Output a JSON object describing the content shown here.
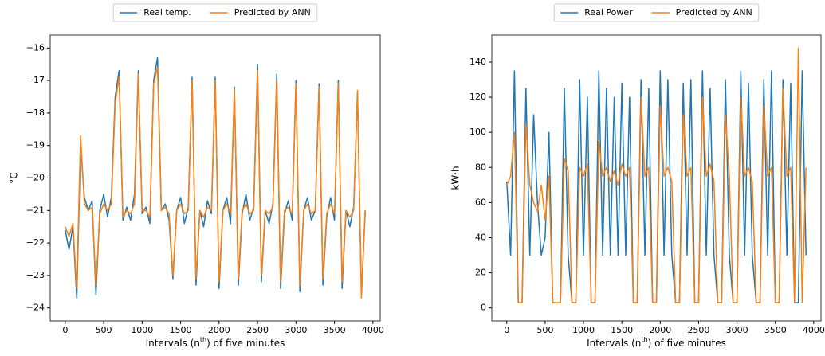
{
  "chart_data": [
    {
      "type": "line",
      "ylabel": "°C",
      "xlabel": [
        "Intervals (n",
        "th",
        ") of five minutes"
      ],
      "legend": "upper center",
      "xlim": [
        -195,
        4095
      ],
      "xticks": [
        0,
        500,
        1000,
        1500,
        2000,
        2500,
        3000,
        3500,
        4000
      ],
      "ylim": [
        -24.4,
        -15.6
      ],
      "yticks": [
        {
          "value": -24,
          "label": "−24"
        },
        {
          "value": -23,
          "label": "−23"
        },
        {
          "value": -22,
          "label": "−22"
        },
        {
          "value": -21,
          "label": "−21"
        },
        {
          "value": -20,
          "label": "−20"
        },
        {
          "value": -19,
          "label": "−19"
        },
        {
          "value": -18,
          "label": "−18"
        },
        {
          "value": -17,
          "label": "−17"
        },
        {
          "value": -16,
          "label": "−16"
        }
      ],
      "x": [
        0,
        50,
        100,
        150,
        200,
        250,
        300,
        350,
        400,
        450,
        500,
        550,
        600,
        650,
        700,
        750,
        800,
        850,
        900,
        950,
        1000,
        1050,
        1100,
        1150,
        1200,
        1250,
        1300,
        1350,
        1400,
        1450,
        1500,
        1550,
        1600,
        1650,
        1700,
        1750,
        1800,
        1850,
        1900,
        1950,
        2000,
        2050,
        2100,
        2150,
        2200,
        2250,
        2300,
        2350,
        2400,
        2450,
        2500,
        2550,
        2600,
        2650,
        2700,
        2750,
        2800,
        2850,
        2900,
        2950,
        3000,
        3050,
        3100,
        3150,
        3200,
        3250,
        3300,
        3350,
        3400,
        3450,
        3500,
        3550,
        3600,
        3650,
        3700,
        3750,
        3800,
        3850,
        3900
      ],
      "series": [
        {
          "name": "Real temp.",
          "color": "#1f77b4",
          "values": [
            -21.6,
            -22.2,
            -21.5,
            -23.7,
            -19.0,
            -20.6,
            -21.0,
            -20.7,
            -23.6,
            -21.0,
            -20.5,
            -21.2,
            -20.6,
            -17.5,
            -16.7,
            -21.3,
            -20.9,
            -21.3,
            -20.5,
            -16.7,
            -21.1,
            -20.9,
            -21.4,
            -17.0,
            -16.3,
            -21.0,
            -20.8,
            -21.3,
            -23.1,
            -21.0,
            -20.6,
            -21.4,
            -20.9,
            -16.9,
            -23.3,
            -21.0,
            -21.5,
            -20.7,
            -21.1,
            -16.9,
            -23.4,
            -21.0,
            -20.6,
            -21.4,
            -17.2,
            -23.3,
            -21.1,
            -20.5,
            -21.3,
            -20.9,
            -16.5,
            -23.2,
            -21.0,
            -21.4,
            -20.8,
            -16.8,
            -23.4,
            -21.1,
            -20.7,
            -21.3,
            -17.0,
            -23.5,
            -21.0,
            -20.6,
            -21.3,
            -21.0,
            -17.1,
            -23.3,
            -21.2,
            -20.6,
            -21.3,
            -17.0,
            -23.4,
            -21.0,
            -21.5,
            -20.9,
            -17.4,
            -23.6,
            -21.0
          ]
        },
        {
          "name": "Predicted by ANN",
          "color": "#ff7f0e",
          "values": [
            -21.5,
            -21.8,
            -21.4,
            -23.4,
            -18.7,
            -20.8,
            -21.0,
            -20.9,
            -23.3,
            -21.1,
            -20.8,
            -21.0,
            -20.8,
            -17.7,
            -16.9,
            -21.2,
            -21.0,
            -21.1,
            -20.8,
            -16.8,
            -21.0,
            -21.0,
            -21.2,
            -17.1,
            -16.6,
            -21.0,
            -20.9,
            -21.1,
            -23.0,
            -21.0,
            -20.8,
            -21.1,
            -21.0,
            -17.0,
            -23.1,
            -21.0,
            -21.2,
            -20.9,
            -21.0,
            -17.0,
            -23.2,
            -21.0,
            -20.8,
            -21.1,
            -17.3,
            -23.1,
            -21.0,
            -20.8,
            -21.1,
            -21.0,
            -16.7,
            -23.0,
            -21.0,
            -21.1,
            -20.9,
            -17.0,
            -23.2,
            -21.0,
            -20.9,
            -21.1,
            -17.1,
            -23.3,
            -21.0,
            -20.8,
            -21.1,
            -21.0,
            -17.2,
            -23.1,
            -21.1,
            -20.8,
            -21.1,
            -17.1,
            -23.2,
            -21.0,
            -21.2,
            -21.0,
            -17.3,
            -23.7,
            -21.0
          ]
        }
      ]
    },
    {
      "type": "line",
      "ylabel": "kW·h",
      "xlabel": [
        "Intervals (n",
        "th",
        ") of five minutes"
      ],
      "legend": "upper center",
      "xlim": [
        -195,
        4095
      ],
      "xticks": [
        0,
        500,
        1000,
        1500,
        2000,
        2500,
        3000,
        3500,
        4000
      ],
      "ylim": [
        -7.4,
        155.4
      ],
      "yticks": [
        0,
        20,
        40,
        60,
        80,
        100,
        120,
        140
      ],
      "x": [
        0,
        50,
        100,
        150,
        200,
        250,
        300,
        350,
        400,
        450,
        500,
        550,
        600,
        650,
        700,
        750,
        800,
        850,
        900,
        950,
        1000,
        1050,
        1100,
        1150,
        1200,
        1250,
        1300,
        1350,
        1400,
        1450,
        1500,
        1550,
        1600,
        1650,
        1700,
        1750,
        1800,
        1850,
        1900,
        1950,
        2000,
        2050,
        2100,
        2150,
        2200,
        2250,
        2300,
        2350,
        2400,
        2450,
        2500,
        2550,
        2600,
        2650,
        2700,
        2750,
        2800,
        2850,
        2900,
        2950,
        3000,
        3050,
        3100,
        3150,
        3200,
        3250,
        3300,
        3350,
        3400,
        3450,
        3500,
        3550,
        3600,
        3650,
        3700,
        3750,
        3800,
        3850,
        3900
      ],
      "series": [
        {
          "name": "Real Power",
          "color": "#1f77b4",
          "values": [
            72,
            30,
            135,
            3,
            3,
            125,
            30,
            110,
            60,
            30,
            40,
            100,
            3,
            3,
            3,
            125,
            30,
            3,
            3,
            130,
            30,
            120,
            3,
            3,
            135,
            30,
            125,
            30,
            120,
            30,
            128,
            30,
            120,
            3,
            3,
            130,
            30,
            125,
            3,
            3,
            135,
            30,
            130,
            30,
            3,
            3,
            128,
            30,
            130,
            3,
            3,
            135,
            30,
            125,
            30,
            3,
            3,
            130,
            30,
            3,
            3,
            135,
            30,
            128,
            30,
            3,
            3,
            130,
            30,
            135,
            3,
            3,
            130,
            30,
            128,
            3,
            3,
            135,
            30
          ]
        },
        {
          "name": "Predicted by ANN",
          "color": "#ff7f0e",
          "values": [
            70,
            75,
            100,
            3,
            3,
            105,
            70,
            60,
            55,
            70,
            50,
            75,
            3,
            3,
            3,
            85,
            78,
            3,
            3,
            80,
            75,
            82,
            3,
            3,
            95,
            75,
            80,
            72,
            78,
            70,
            82,
            75,
            80,
            3,
            3,
            120,
            75,
            80,
            3,
            3,
            115,
            75,
            80,
            72,
            3,
            3,
            110,
            75,
            80,
            3,
            3,
            120,
            75,
            82,
            72,
            3,
            3,
            110,
            75,
            3,
            3,
            120,
            75,
            80,
            72,
            3,
            3,
            115,
            75,
            80,
            3,
            3,
            125,
            75,
            80,
            3,
            148,
            3,
            80
          ]
        }
      ]
    }
  ]
}
